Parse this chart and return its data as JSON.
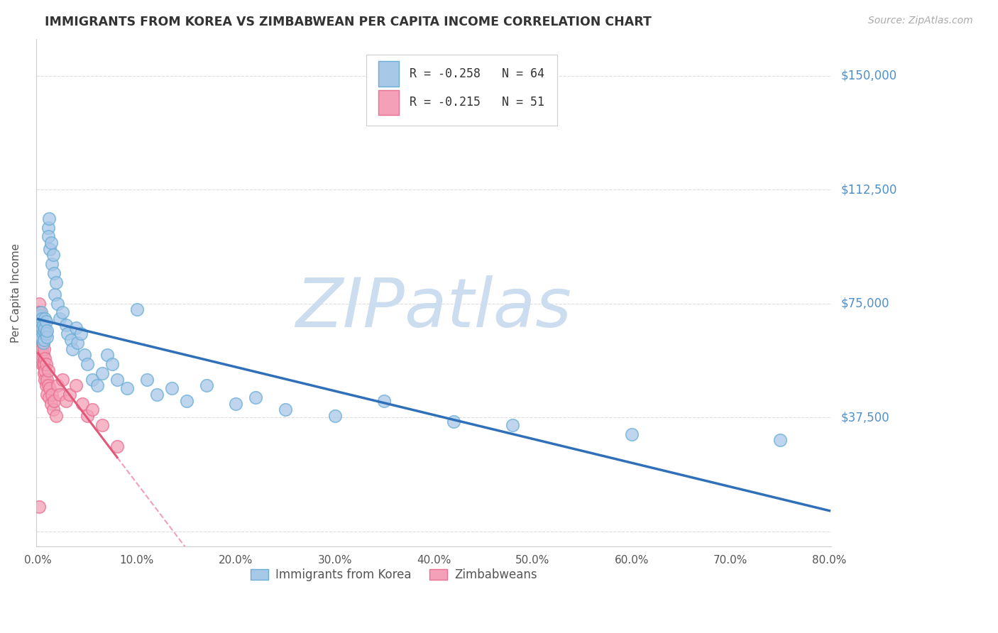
{
  "title": "IMMIGRANTS FROM KOREA VS ZIMBABWEAN PER CAPITA INCOME CORRELATION CHART",
  "source": "Source: ZipAtlas.com",
  "ylabel": "Per Capita Income",
  "xlim": [
    -0.002,
    0.802
  ],
  "ylim": [
    -5000,
    162000
  ],
  "blue_color": "#a8c8e8",
  "pink_color": "#f4a0b8",
  "blue_edge": "#6aaed6",
  "pink_edge": "#e87090",
  "blue_line_color": "#3070b8",
  "pink_line_solid": "#e05878",
  "pink_line_dashed": "#f0a0b8",
  "legend1_r": "R = -0.258",
  "legend1_n": "N = 64",
  "legend2_r": "R = -0.215",
  "legend2_n": "N = 51",
  "watermark": "ZIPatlas",
  "watermark_color": "#ccddf0",
  "legend_label1": "Immigrants from Korea",
  "legend_label2": "Zimbabweans",
  "blue_x": [
    0.001,
    0.001,
    0.002,
    0.002,
    0.003,
    0.003,
    0.003,
    0.004,
    0.004,
    0.005,
    0.005,
    0.005,
    0.006,
    0.006,
    0.007,
    0.007,
    0.008,
    0.008,
    0.009,
    0.009,
    0.01,
    0.01,
    0.011,
    0.012,
    0.013,
    0.014,
    0.015,
    0.016,
    0.017,
    0.018,
    0.02,
    0.022,
    0.025,
    0.028,
    0.03,
    0.033,
    0.035,
    0.038,
    0.04,
    0.043,
    0.047,
    0.05,
    0.055,
    0.06,
    0.065,
    0.07,
    0.075,
    0.08,
    0.09,
    0.1,
    0.11,
    0.12,
    0.135,
    0.15,
    0.17,
    0.2,
    0.22,
    0.25,
    0.3,
    0.35,
    0.42,
    0.48,
    0.6,
    0.75
  ],
  "blue_y": [
    65000,
    68000,
    71000,
    66000,
    69000,
    72000,
    64000,
    67000,
    70000,
    65000,
    62000,
    68000,
    66000,
    63000,
    70000,
    67000,
    65000,
    69000,
    64000,
    66000,
    100000,
    97000,
    103000,
    93000,
    95000,
    88000,
    91000,
    85000,
    78000,
    82000,
    75000,
    70000,
    72000,
    68000,
    65000,
    63000,
    60000,
    67000,
    62000,
    65000,
    58000,
    55000,
    50000,
    48000,
    52000,
    58000,
    55000,
    50000,
    47000,
    73000,
    50000,
    45000,
    47000,
    43000,
    48000,
    42000,
    44000,
    40000,
    38000,
    43000,
    36000,
    35000,
    32000,
    30000
  ],
  "pink_x": [
    0.0005,
    0.001,
    0.001,
    0.001,
    0.001,
    0.002,
    0.002,
    0.002,
    0.002,
    0.003,
    0.003,
    0.003,
    0.003,
    0.004,
    0.004,
    0.004,
    0.004,
    0.005,
    0.005,
    0.005,
    0.006,
    0.006,
    0.006,
    0.007,
    0.007,
    0.007,
    0.008,
    0.008,
    0.009,
    0.009,
    0.01,
    0.01,
    0.011,
    0.012,
    0.013,
    0.014,
    0.015,
    0.016,
    0.018,
    0.02,
    0.022,
    0.025,
    0.028,
    0.032,
    0.038,
    0.045,
    0.05,
    0.055,
    0.065,
    0.08,
    0.0008
  ],
  "pink_y": [
    70000,
    75000,
    68000,
    63000,
    72000,
    65000,
    68000,
    60000,
    72000,
    63000,
    66000,
    58000,
    70000,
    63000,
    55000,
    67000,
    60000,
    55000,
    62000,
    58000,
    52000,
    60000,
    55000,
    50000,
    57000,
    53000,
    48000,
    55000,
    50000,
    45000,
    48000,
    53000,
    44000,
    47000,
    42000,
    45000,
    40000,
    43000,
    38000,
    48000,
    45000,
    50000,
    43000,
    45000,
    48000,
    42000,
    38000,
    40000,
    35000,
    28000,
    8000
  ],
  "background_color": "#ffffff",
  "grid_color": "#dddddd",
  "title_color": "#333333",
  "yaxis_label_color": "#555555",
  "ytick_color": "#5090c8",
  "yticks": [
    0,
    37500,
    75000,
    112500,
    150000
  ],
  "ytick_labels": [
    "",
    "$37,500",
    "$75,000",
    "$112,500",
    "$150,000"
  ]
}
